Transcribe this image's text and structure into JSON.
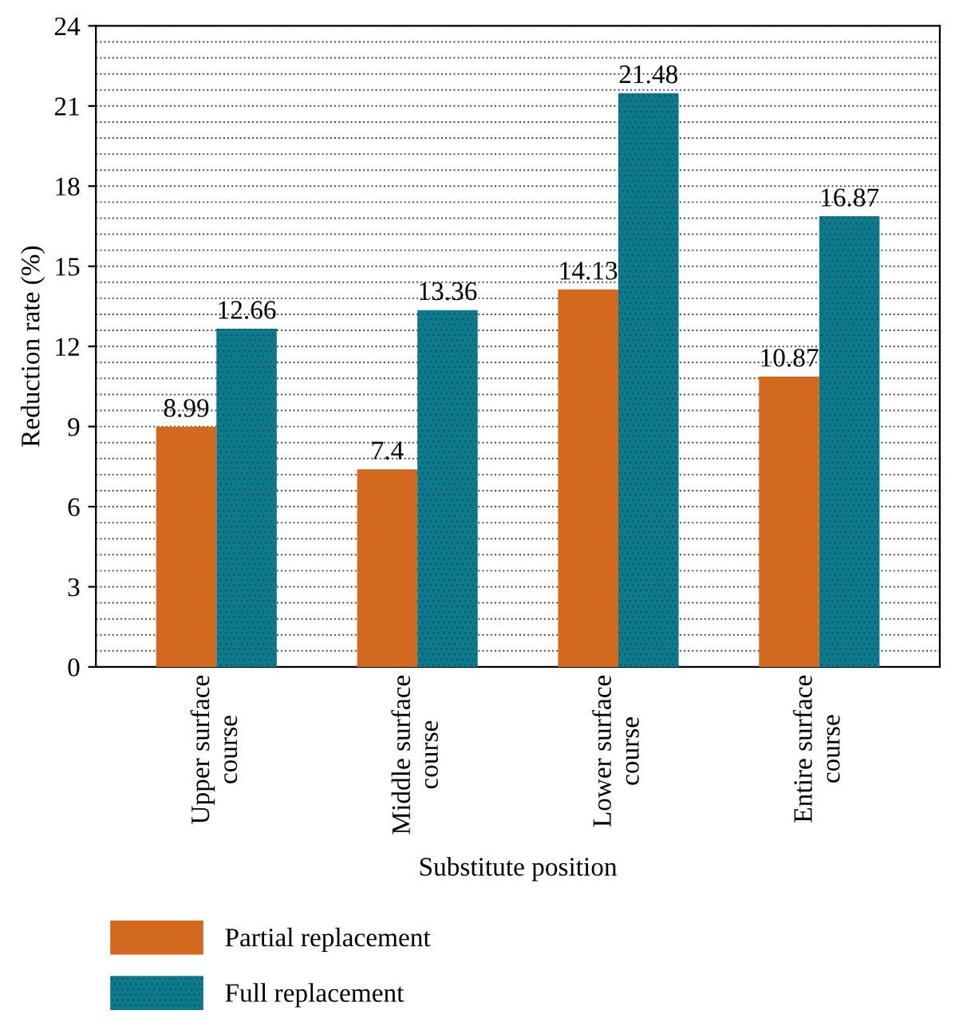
{
  "chart_data": {
    "type": "bar",
    "xlabel": "Substitute position",
    "ylabel": "Reduction rate (%)",
    "categories": [
      "Upper surface\ncourse",
      "Middle surface\ncourse",
      "Lower surface\ncourse",
      "Entire surface\ncourse"
    ],
    "series": [
      {
        "name": "Partial replacement",
        "color": "#d2691e",
        "values": [
          8.99,
          7.4,
          14.13,
          10.87
        ]
      },
      {
        "name": "Full replacement",
        "color": "#0a7a8c",
        "values": [
          12.66,
          13.36,
          21.48,
          16.87
        ]
      }
    ],
    "ylim": [
      0,
      24
    ],
    "yticks": [
      0,
      3,
      6,
      9,
      12,
      15,
      18,
      21,
      24
    ],
    "grid": "y",
    "legend": "bottom",
    "data_labels": true
  }
}
